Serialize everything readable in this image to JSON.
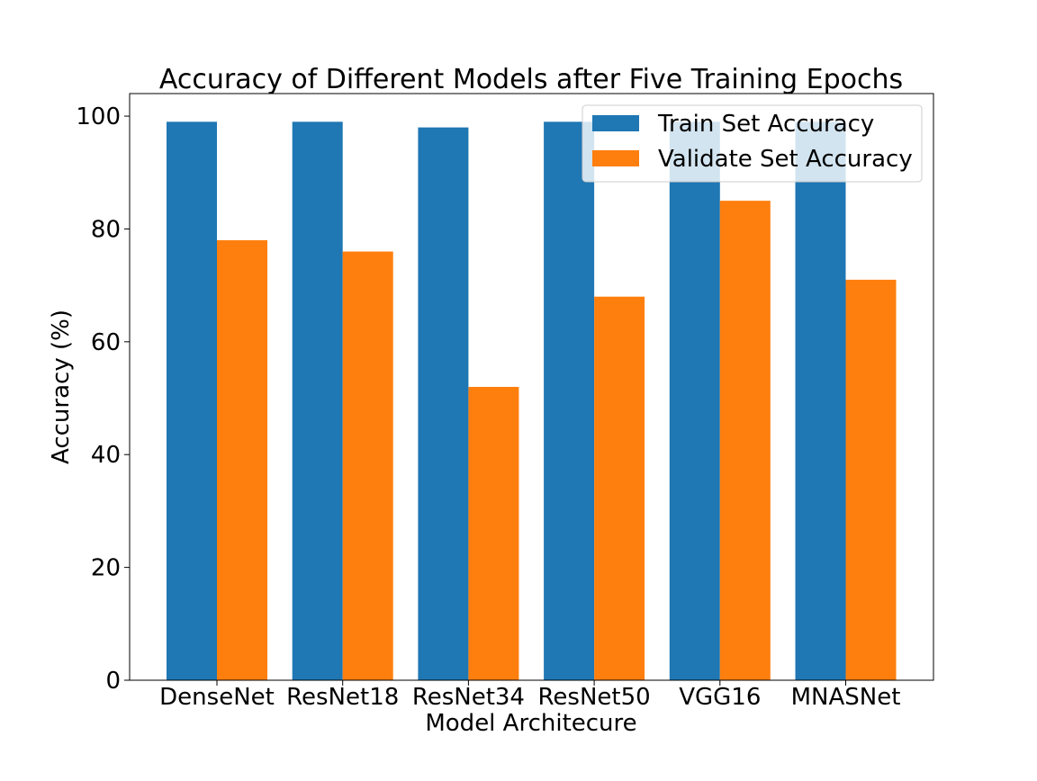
{
  "chart_data": {
    "type": "bar",
    "title": "Accuracy of Different Models after Five Training Epochs",
    "xlabel": "Model Architecure",
    "ylabel": "Accuracy (%)",
    "ylim": [
      0,
      104
    ],
    "yticks": [
      0,
      20,
      40,
      60,
      80,
      100
    ],
    "categories": [
      "DenseNet",
      "ResNet18",
      "ResNet34",
      "ResNet50",
      "VGG16",
      "MNASNet"
    ],
    "series": [
      {
        "name": "Train Set Accuracy",
        "color": "#1f77b4",
        "values": [
          99,
          99,
          98,
          99,
          99,
          99
        ]
      },
      {
        "name": "Validate Set Accuracy",
        "color": "#ff7f0e",
        "values": [
          78,
          76,
          52,
          68,
          85,
          71
        ]
      }
    ],
    "grid": false,
    "legend": "top-right"
  }
}
